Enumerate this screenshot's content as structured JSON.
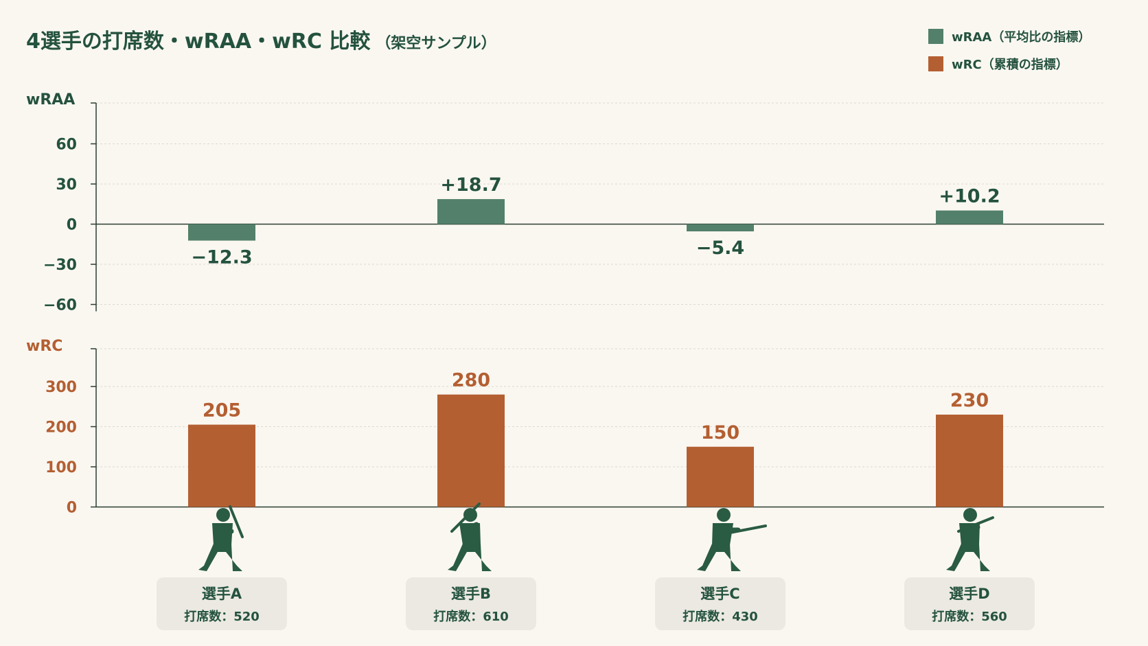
{
  "chart_data": {
    "type": "bar",
    "title": "4選手の打席数・wRAA・wRC 比較",
    "subtitle": "（架空サンプル）",
    "categories": [
      "選手A",
      "選手B",
      "選手C",
      "選手D"
    ],
    "plate_appearances_label": "打席数：",
    "plate_appearances": [
      "520",
      "610",
      "430",
      "560"
    ],
    "series": [
      {
        "name": "wRAA（平均比の指標）",
        "axis_title": "wRAA",
        "values": [
          -12.3,
          18.7,
          -5.4,
          10.2
        ],
        "value_labels": [
          "−12.3",
          "+18.7",
          "−5.4",
          "+10.2"
        ],
        "ylim": [
          -60,
          60
        ],
        "ticks": [
          60,
          30,
          0,
          -30,
          -60
        ],
        "tick_labels": [
          "60",
          "30",
          "0",
          "−30",
          "−60"
        ],
        "color": "#53806a"
      },
      {
        "name": "wRC（累積の指標）",
        "axis_title": "wRC",
        "values": [
          205,
          280,
          150,
          230
        ],
        "value_labels": [
          "205",
          "280",
          "150",
          "230"
        ],
        "ylim": [
          0,
          300
        ],
        "ticks": [
          300,
          200,
          100,
          0
        ],
        "tick_labels": [
          "300",
          "200",
          "100",
          "0"
        ],
        "color": "#b45f32"
      }
    ],
    "legend_position": "top-right",
    "grid": true
  },
  "colors": {
    "background": "#faf7f1",
    "text_green": "#24523e",
    "text_orange": "#b45f32",
    "silhouette": "#2a5b43",
    "card": "#ebe9e2",
    "grid": "#dcd9d1",
    "axis": "#2a3d33"
  },
  "icons": [
    "batter-icon",
    "batter-icon",
    "batter-icon",
    "batter-icon"
  ]
}
